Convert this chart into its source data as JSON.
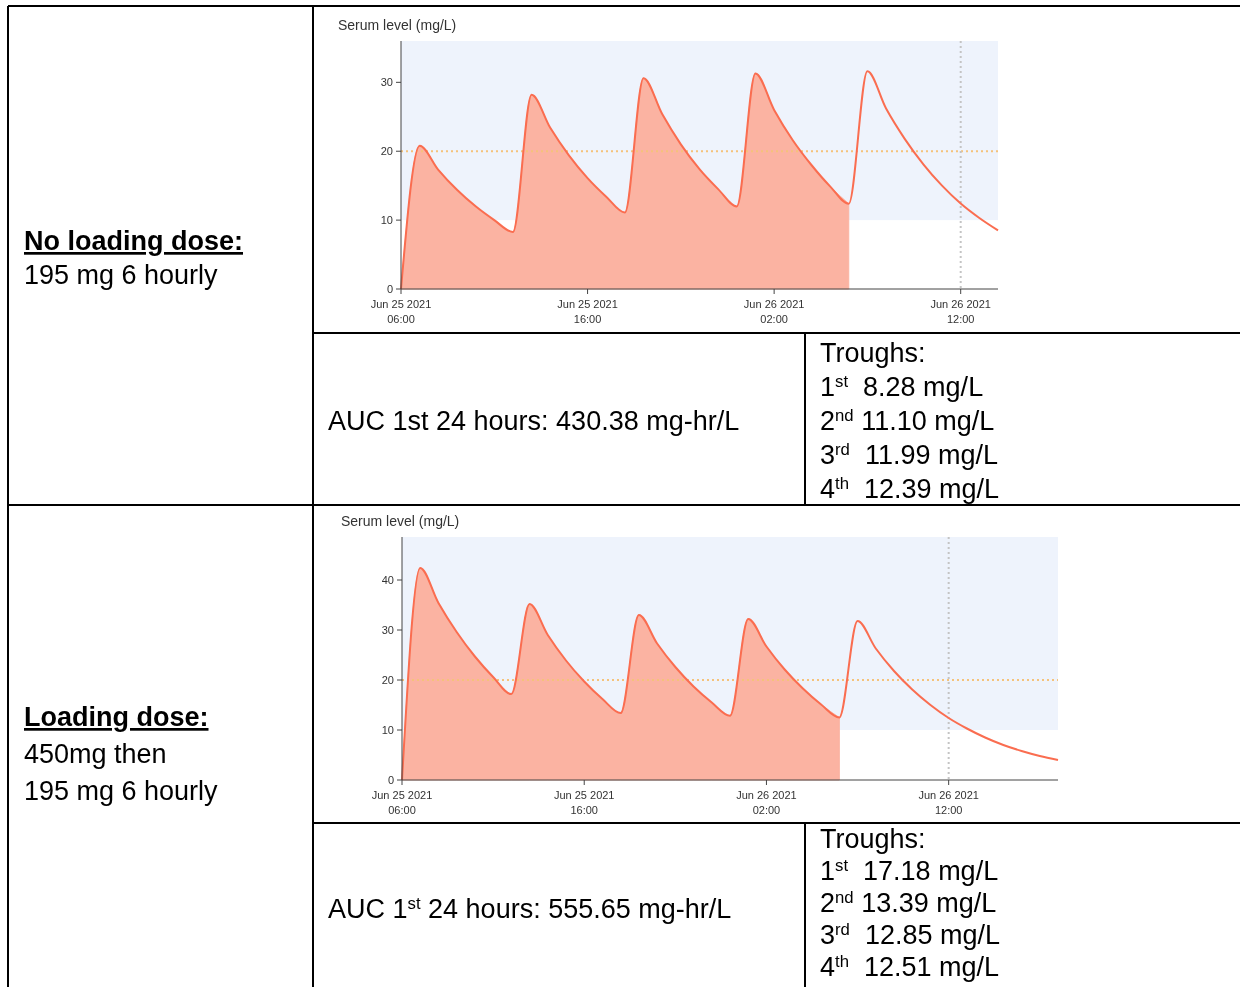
{
  "chart_data": [
    {
      "type": "other",
      "title": "No loading dose:",
      "annotations": [
        "195 mg 6 hourly"
      ]
    },
    {
      "type": "line",
      "ylabel": "Serum level (mg/L)",
      "xlim": [
        "2021-06-25T06:00",
        "2021-06-26T14:00"
      ],
      "ylim": [
        0,
        36
      ],
      "xticks": [
        {
          "value": "2021-06-25T06:00",
          "label": "Jun 25 2021\n06:00"
        },
        {
          "value": "2021-06-25T16:00",
          "label": "Jun 25 2021\n16:00"
        },
        {
          "value": "2021-06-26T02:00",
          "label": "Jun 26 2021\n02:00"
        },
        {
          "value": "2021-06-26T12:00",
          "label": "Jun 26 2021\n12:00"
        }
      ],
      "yticks": [
        0,
        10,
        20,
        30
      ],
      "bands": [
        {
          "axis": "y",
          "from": 10,
          "to": 36,
          "color": "#eef3fc"
        }
      ],
      "ref_lines": [
        {
          "axis": "y",
          "value": 20,
          "color": "#f5c27a",
          "line_style": "dotted"
        },
        {
          "axis": "x",
          "value": "2021-06-26T12:00",
          "color": "#c4c4c4",
          "line_style": "dotted"
        }
      ],
      "series": [
        {
          "type": "area",
          "color": "#fbb3a2",
          "x": [
            "2021-06-25T06:00",
            "2021-06-25T07:00",
            "2021-06-25T08:00",
            "2021-06-25T09:00",
            "2021-06-25T10:00",
            "2021-06-25T11:00",
            "2021-06-25T12:00",
            "2021-06-25T13:00",
            "2021-06-25T14:00",
            "2021-06-25T15:00",
            "2021-06-25T16:00",
            "2021-06-25T17:00",
            "2021-06-25T18:00",
            "2021-06-25T19:00",
            "2021-06-25T20:00",
            "2021-06-25T21:00",
            "2021-06-25T22:00",
            "2021-06-25T23:00",
            "2021-06-26T00:00",
            "2021-06-26T01:00",
            "2021-06-26T02:00",
            "2021-06-26T03:00",
            "2021-06-26T04:00",
            "2021-06-26T05:00",
            "2021-06-26T06:00"
          ],
          "values": [
            0,
            20.8,
            17.3,
            14.4,
            12.0,
            10.0,
            8.28,
            28.2,
            23.4,
            19.4,
            16.1,
            13.4,
            11.1,
            30.6,
            25.4,
            21.0,
            17.4,
            14.5,
            11.99,
            31.3,
            26.0,
            21.6,
            18.0,
            14.9,
            12.39
          ]
        },
        {
          "type": "line",
          "color": "#fa6d50",
          "x": [
            "2021-06-25T06:00",
            "2021-06-25T07:00",
            "2021-06-25T08:00",
            "2021-06-25T09:00",
            "2021-06-25T10:00",
            "2021-06-25T11:00",
            "2021-06-25T12:00",
            "2021-06-25T13:00",
            "2021-06-25T14:00",
            "2021-06-25T15:00",
            "2021-06-25T16:00",
            "2021-06-25T17:00",
            "2021-06-25T18:00",
            "2021-06-25T19:00",
            "2021-06-25T20:00",
            "2021-06-25T21:00",
            "2021-06-25T22:00",
            "2021-06-25T23:00",
            "2021-06-26T00:00",
            "2021-06-26T01:00",
            "2021-06-26T02:00",
            "2021-06-26T03:00",
            "2021-06-26T04:00",
            "2021-06-26T05:00",
            "2021-06-26T06:00",
            "2021-06-26T07:00",
            "2021-06-26T08:00",
            "2021-06-26T09:00",
            "2021-06-26T10:00",
            "2021-06-26T11:00",
            "2021-06-26T12:00",
            "2021-06-26T13:00",
            "2021-06-26T14:00"
          ],
          "values": [
            0,
            20.8,
            17.3,
            14.4,
            12.0,
            10.0,
            8.28,
            28.2,
            23.4,
            19.4,
            16.1,
            13.4,
            11.1,
            30.6,
            25.4,
            21.0,
            17.4,
            14.5,
            11.99,
            31.3,
            26.0,
            21.6,
            18.0,
            14.9,
            12.39,
            31.6,
            26.2,
            21.8,
            18.1,
            15.0,
            12.4,
            10.3,
            8.5
          ]
        }
      ]
    },
    {
      "type": "other",
      "annotations": [
        "AUC 1st 24 hours: 430.38 mg-hr/L"
      ]
    },
    {
      "type": "other",
      "title": "Troughs:",
      "annotations": [
        "1$^{st}$  8.28 mg/L",
        "2$^{nd}$ 11.10 mg/L",
        "3$^{rd}$  11.99 mg/L",
        "4$^{th}$  12.39 mg/L"
      ]
    },
    {
      "type": "other",
      "title": "Loading dose:",
      "annotations": [
        "450mg then",
        "195 mg 6 hourly"
      ]
    },
    {
      "type": "line",
      "ylabel": "Serum level (mg/L)",
      "xlim": [
        "2021-06-25T06:00",
        "2021-06-26T18:00"
      ],
      "ylim": [
        0,
        48.6
      ],
      "xticks": [
        {
          "value": "2021-06-25T06:00",
          "label": "Jun 25 2021\n06:00"
        },
        {
          "value": "2021-06-25T16:00",
          "label": "Jun 25 2021\n16:00"
        },
        {
          "value": "2021-06-26T02:00",
          "label": "Jun 26 2021\n02:00"
        },
        {
          "value": "2021-06-26T12:00",
          "label": "Jun 26 2021\n12:00"
        }
      ],
      "yticks": [
        0,
        10,
        20,
        30,
        40
      ],
      "bands": [
        {
          "axis": "y",
          "from": 10,
          "to": 48.6,
          "color": "#eef3fc"
        }
      ],
      "ref_lines": [
        {
          "axis": "y",
          "value": 20,
          "color": "#f5c27a",
          "line_style": "dotted"
        },
        {
          "axis": "x",
          "value": "2021-06-26T12:00",
          "color": "#c4c4c4",
          "line_style": "dotted"
        }
      ],
      "series": [
        {
          "type": "area",
          "color": "#fbb3a2",
          "x": [
            "2021-06-25T06:00",
            "2021-06-25T07:00",
            "2021-06-25T08:00",
            "2021-06-25T09:00",
            "2021-06-25T10:00",
            "2021-06-25T11:00",
            "2021-06-25T12:00",
            "2021-06-25T13:00",
            "2021-06-25T14:00",
            "2021-06-25T15:00",
            "2021-06-25T16:00",
            "2021-06-25T17:00",
            "2021-06-25T18:00",
            "2021-06-25T19:00",
            "2021-06-25T20:00",
            "2021-06-25T21:00",
            "2021-06-25T22:00",
            "2021-06-25T23:00",
            "2021-06-26T00:00",
            "2021-06-26T01:00",
            "2021-06-26T02:00",
            "2021-06-26T03:00",
            "2021-06-26T04:00",
            "2021-06-26T05:00",
            "2021-06-26T06:00"
          ],
          "values": [
            0,
            42.4,
            35.4,
            29.6,
            24.7,
            20.6,
            17.18,
            35.2,
            29.0,
            23.9,
            19.7,
            16.2,
            13.39,
            33.0,
            27.3,
            22.6,
            18.7,
            15.5,
            12.85,
            32.2,
            26.7,
            22.1,
            18.3,
            15.1,
            12.51
          ]
        },
        {
          "type": "line",
          "color": "#fa6d50",
          "x": [
            "2021-06-25T06:00",
            "2021-06-25T07:00",
            "2021-06-25T08:00",
            "2021-06-25T09:00",
            "2021-06-25T10:00",
            "2021-06-25T11:00",
            "2021-06-25T12:00",
            "2021-06-25T13:00",
            "2021-06-25T14:00",
            "2021-06-25T15:00",
            "2021-06-25T16:00",
            "2021-06-25T17:00",
            "2021-06-25T18:00",
            "2021-06-25T19:00",
            "2021-06-25T20:00",
            "2021-06-25T21:00",
            "2021-06-25T22:00",
            "2021-06-25T23:00",
            "2021-06-26T00:00",
            "2021-06-26T01:00",
            "2021-06-26T02:00",
            "2021-06-26T03:00",
            "2021-06-26T04:00",
            "2021-06-26T05:00",
            "2021-06-26T06:00",
            "2021-06-26T07:00",
            "2021-06-26T08:00",
            "2021-06-26T09:00",
            "2021-06-26T10:00",
            "2021-06-26T11:00",
            "2021-06-26T12:00",
            "2021-06-26T13:00",
            "2021-06-26T14:00",
            "2021-06-26T15:00",
            "2021-06-26T16:00",
            "2021-06-26T17:00",
            "2021-06-26T18:00"
          ],
          "values": [
            0,
            42.4,
            35.4,
            29.6,
            24.7,
            20.6,
            17.18,
            35.2,
            29.0,
            23.9,
            19.7,
            16.2,
            13.39,
            33.0,
            27.3,
            22.6,
            18.7,
            15.5,
            12.85,
            32.2,
            26.7,
            22.1,
            18.3,
            15.1,
            12.51,
            31.8,
            26.3,
            21.8,
            18.1,
            15.0,
            12.4,
            10.3,
            8.5,
            7.0,
            5.8,
            4.8,
            4.0
          ]
        }
      ]
    },
    {
      "type": "other",
      "annotations": [
        "AUC 1$^{st}$ 24 hours: 555.65 mg-hr/L"
      ]
    },
    {
      "type": "other",
      "title": "Troughs:",
      "annotations": [
        "1$^{st}$  17.18 mg/L",
        "2$^{nd}$ 13.39 mg/L",
        "3$^{rd}$  12.85 mg/L",
        "4$^{th}$  12.51 mg/L"
      ]
    }
  ]
}
